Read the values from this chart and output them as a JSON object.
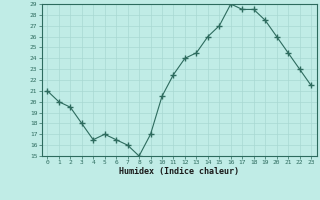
{
  "x": [
    0,
    1,
    2,
    3,
    4,
    5,
    6,
    7,
    8,
    9,
    10,
    11,
    12,
    13,
    14,
    15,
    16,
    17,
    18,
    19,
    20,
    21,
    22,
    23
  ],
  "y": [
    21,
    20,
    19.5,
    18,
    16.5,
    17,
    16.5,
    16,
    15,
    17,
    20.5,
    22.5,
    24,
    24.5,
    26,
    27,
    29,
    28.5,
    28.5,
    27.5,
    26,
    24.5,
    23,
    21.5
  ],
  "line_color": "#2d6b5e",
  "marker": "+",
  "marker_color": "#2d6b5e",
  "bg_color": "#c0ece6",
  "grid_color": "#a8d8d2",
  "xlabel": "Humidex (Indice chaleur)",
  "ylim": [
    15,
    29
  ],
  "xlim": [
    -0.5,
    23.5
  ],
  "yticks": [
    15,
    16,
    17,
    18,
    19,
    20,
    21,
    22,
    23,
    24,
    25,
    26,
    27,
    28,
    29
  ],
  "xticks": [
    0,
    1,
    2,
    3,
    4,
    5,
    6,
    7,
    8,
    9,
    10,
    11,
    12,
    13,
    14,
    15,
    16,
    17,
    18,
    19,
    20,
    21,
    22,
    23
  ],
  "axis_color": "#2d6b5e",
  "tick_color": "#2d6b5e",
  "label_color": "#1a1a1a"
}
